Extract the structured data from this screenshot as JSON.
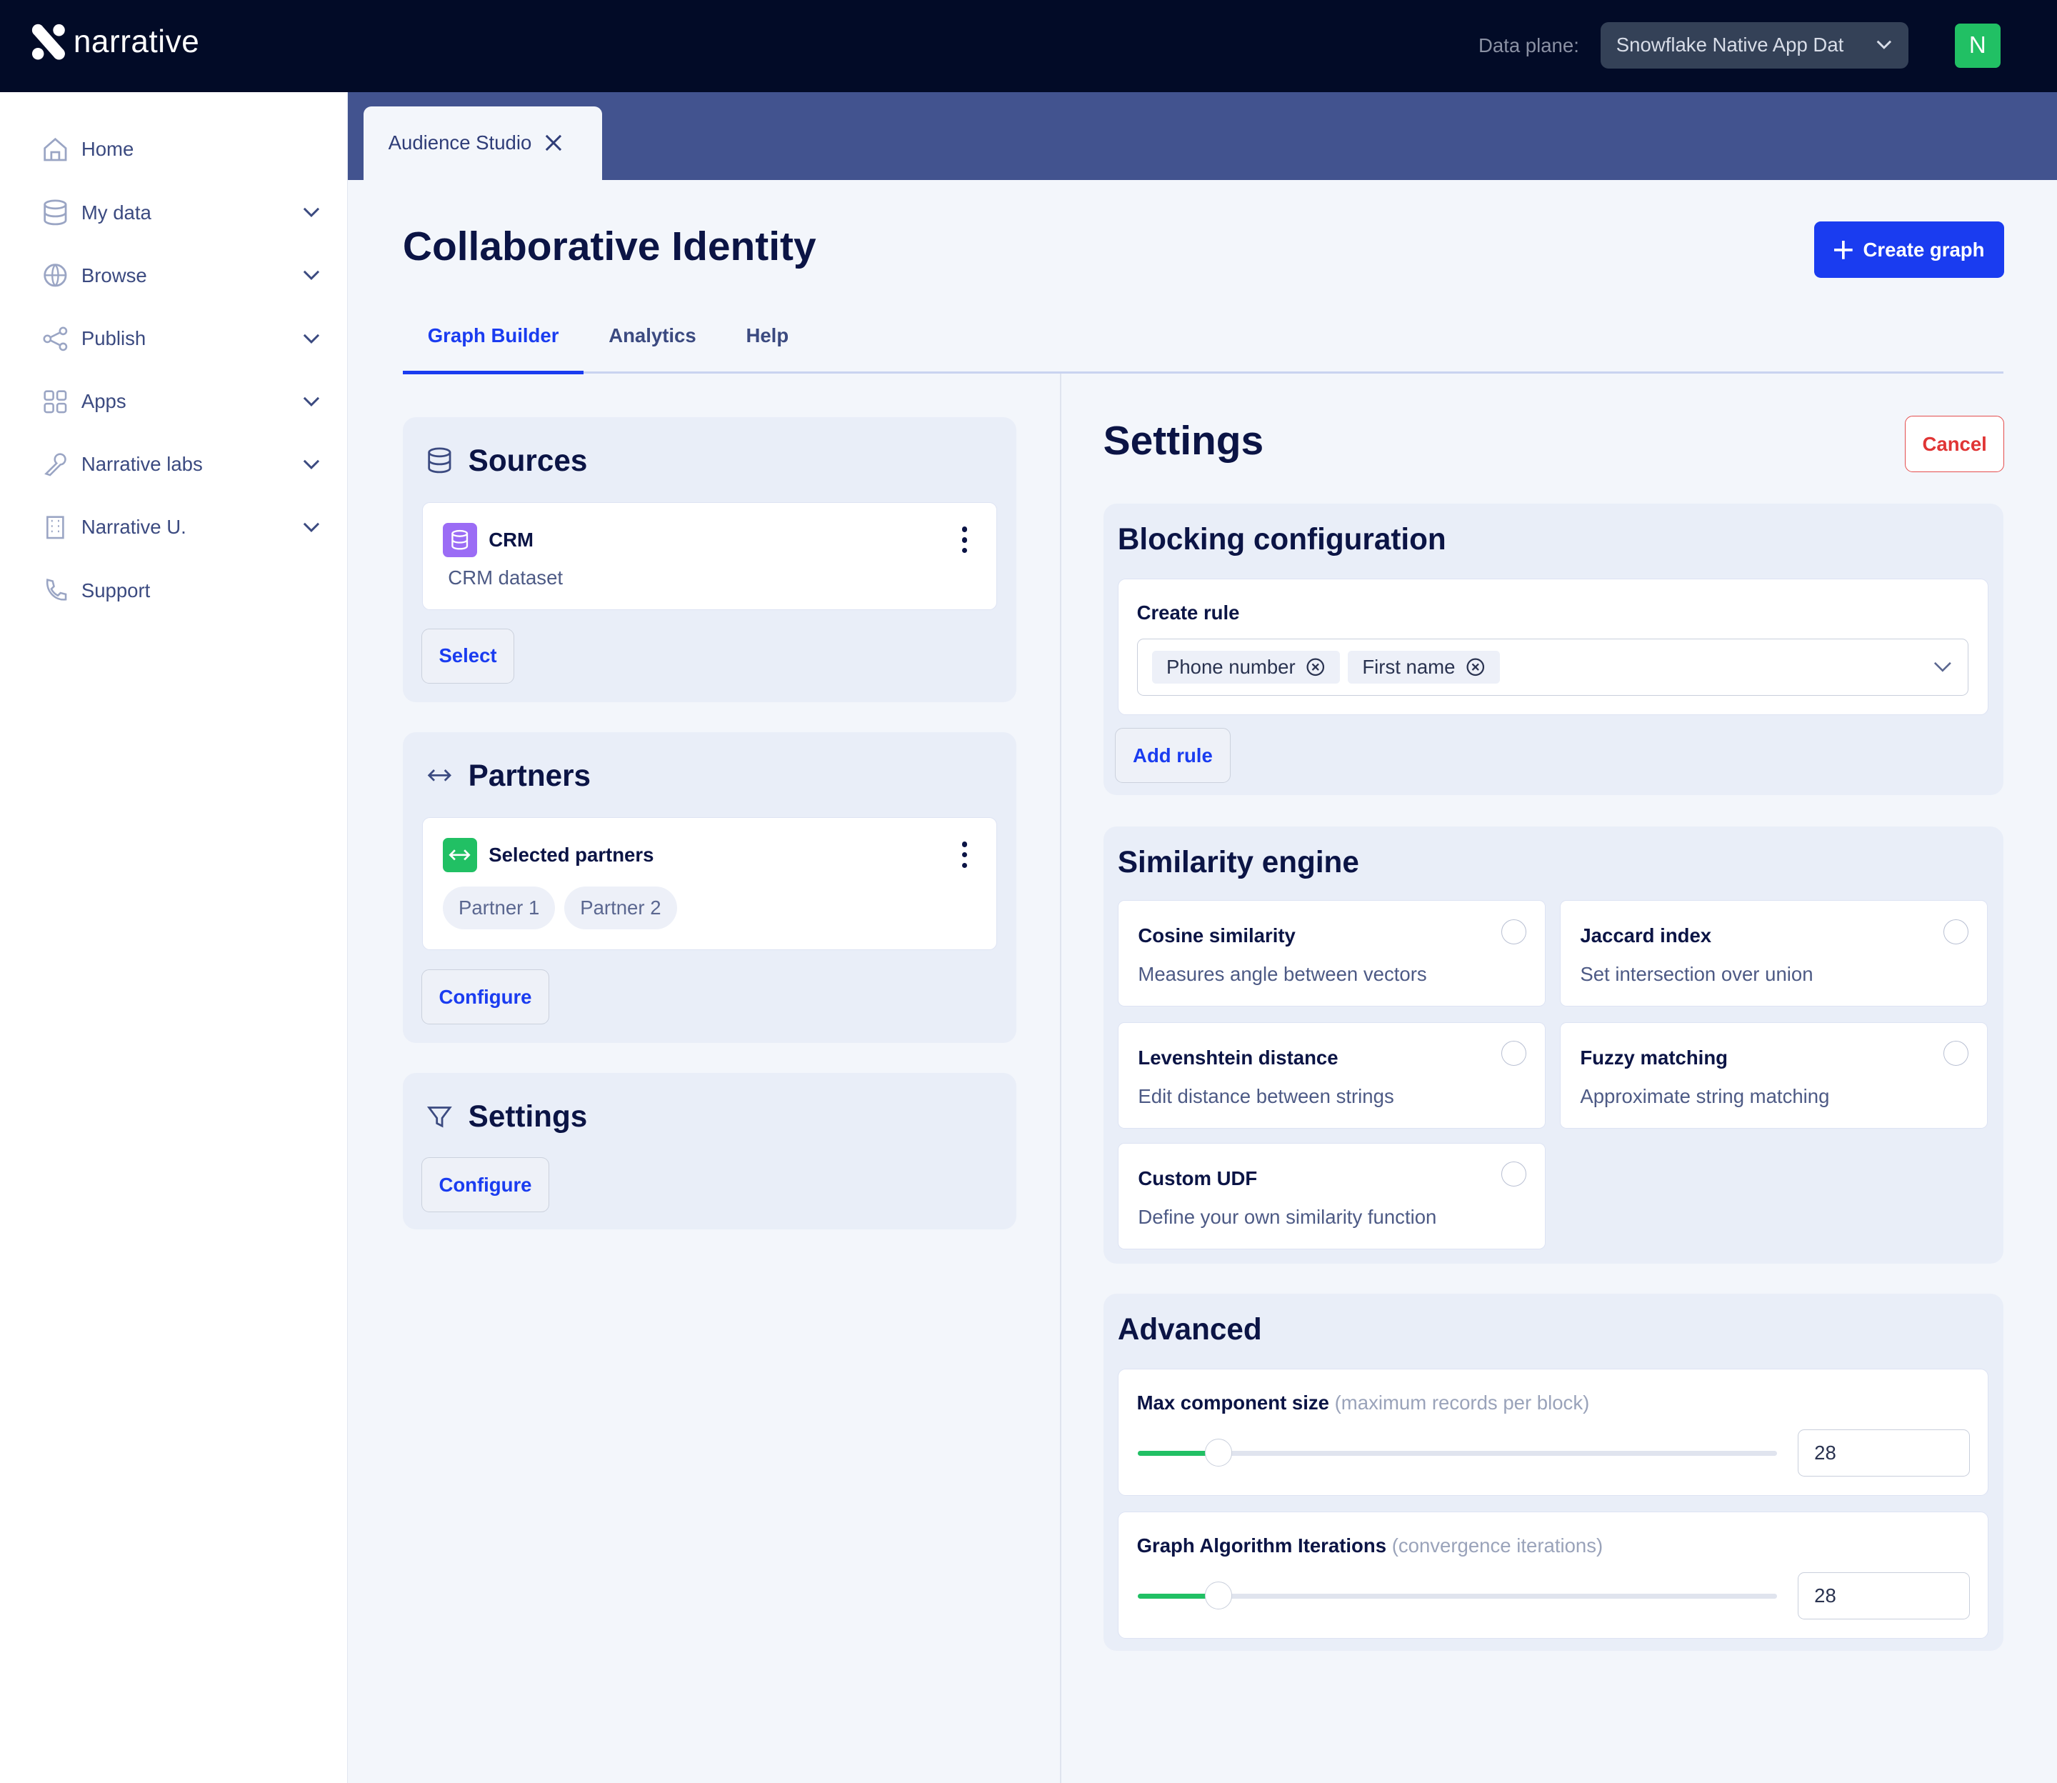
{
  "brand": {
    "name": "narrative"
  },
  "topbar": {
    "data_plane_label": "Data plane:",
    "data_plane_value": "Snowflake Native App Dat",
    "avatar_initial": "N",
    "avatar_color": "#21c064"
  },
  "sidebar": {
    "items": [
      {
        "label": "Home",
        "icon": "home-icon",
        "expandable": false
      },
      {
        "label": "My data",
        "icon": "database-icon",
        "expandable": true
      },
      {
        "label": "Browse",
        "icon": "globe-icon",
        "expandable": true
      },
      {
        "label": "Publish",
        "icon": "share-icon",
        "expandable": true
      },
      {
        "label": "Apps",
        "icon": "grid-icon",
        "expandable": true
      },
      {
        "label": "Narrative labs",
        "icon": "wrench-icon",
        "expandable": true
      },
      {
        "label": "Narrative U.",
        "icon": "building-icon",
        "expandable": true
      },
      {
        "label": "Support",
        "icon": "phone-icon",
        "expandable": false
      }
    ]
  },
  "app_tab": {
    "label": "Audience Studio"
  },
  "page": {
    "title": "Collaborative Identity",
    "create_label": "Create graph",
    "accent": "#1a3cf0"
  },
  "tabs": [
    {
      "label": "Graph Builder",
      "active": true
    },
    {
      "label": "Analytics",
      "active": false
    },
    {
      "label": "Help",
      "active": false
    }
  ],
  "left": {
    "sources": {
      "title": "Sources",
      "item": {
        "name": "CRM",
        "description": "CRM dataset",
        "icon_color": "#9b6cf5"
      },
      "button": "Select"
    },
    "partners": {
      "title": "Partners",
      "item": {
        "name": "Selected partners",
        "icon_color": "#21c064",
        "partners": [
          "Partner 1",
          "Partner 2"
        ]
      },
      "button": "Configure"
    },
    "settings": {
      "title": "Settings",
      "button": "Configure"
    }
  },
  "right": {
    "title": "Settings",
    "cancel_label": "Cancel",
    "blocking": {
      "title": "Blocking configuration",
      "rule_label": "Create rule",
      "tags": [
        "Phone number",
        "First name"
      ],
      "add_rule": "Add rule"
    },
    "similarity": {
      "title": "Similarity engine",
      "options": [
        {
          "name": "Cosine similarity",
          "desc": "Measures angle between vectors",
          "selected": false
        },
        {
          "name": "Jaccard index",
          "desc": "Set intersection over union",
          "selected": false
        },
        {
          "name": "Levenshtein distance",
          "desc": "Edit distance between strings",
          "selected": false
        },
        {
          "name": "Fuzzy matching",
          "desc": "Approximate string matching",
          "selected": false
        },
        {
          "name": "Custom UDF",
          "desc": "Define your own similarity function",
          "selected": false
        }
      ]
    },
    "advanced": {
      "title": "Advanced",
      "fields": [
        {
          "label": "Max component size",
          "hint": "(maximum records per block)",
          "value": "28",
          "slider_fraction": 0.125
        },
        {
          "label": "Graph Algorithm Iterations",
          "hint": "(convergence iterations)",
          "value": "28",
          "slider_fraction": 0.125
        }
      ]
    }
  }
}
